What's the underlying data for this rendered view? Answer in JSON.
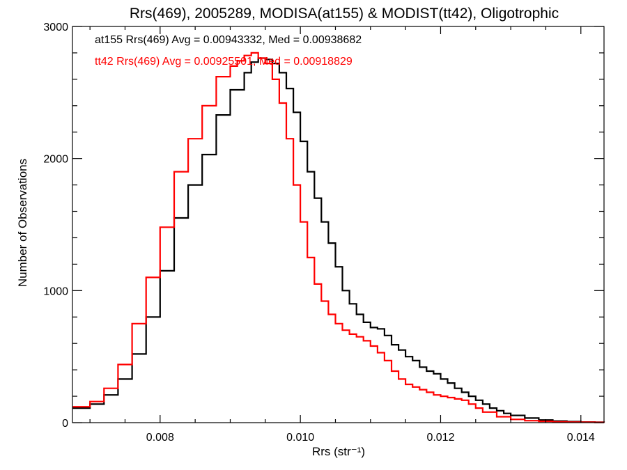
{
  "chart_data": {
    "type": "line",
    "title": "Rrs(469), 2005289, MODISA(at155) & MODIST(tt42), Oligotrophic",
    "xlabel": "Rrs (str⁻¹)",
    "ylabel": "Number of Observations",
    "xlim": [
      0.00675,
      0.01433
    ],
    "ylim": [
      0,
      3000
    ],
    "x_ticks": [
      0.008,
      0.01,
      0.012,
      0.014
    ],
    "x_tick_labels": [
      "0.008",
      "0.010",
      "0.012",
      "0.014"
    ],
    "y_ticks": [
      0,
      1000,
      2000,
      3000
    ],
    "y_tick_labels": [
      "0",
      "1000",
      "2000",
      "3000"
    ],
    "grid": false,
    "annotations": [
      {
        "text": "at155 Rrs(469) Avg = 0.00943332, Med = 0.00938682",
        "color": "#000000"
      },
      {
        "text": "tt42 Rrs(469) Avg = 0.00925501, Med = 0.00918829",
        "color": "#ff0000"
      }
    ],
    "series": [
      {
        "color": "#000000",
        "x": [
          0.00675,
          0.007,
          0.0072,
          0.0074,
          0.0076,
          0.0078,
          0.008,
          0.0082,
          0.0084,
          0.0086,
          0.0088,
          0.009,
          0.0092,
          0.0093,
          0.0094,
          0.0095,
          0.0096,
          0.0097,
          0.0098,
          0.0099,
          0.01,
          0.0101,
          0.0102,
          0.0103,
          0.0104,
          0.0105,
          0.0106,
          0.0107,
          0.0108,
          0.0109,
          0.011,
          0.0111,
          0.0112,
          0.0113,
          0.0114,
          0.0115,
          0.0116,
          0.0117,
          0.0118,
          0.0119,
          0.012,
          0.0121,
          0.0122,
          0.0123,
          0.0124,
          0.0125,
          0.0126,
          0.0127,
          0.0128,
          0.0129,
          0.013,
          0.0132,
          0.0134,
          0.0136,
          0.0138,
          0.014,
          0.0142,
          0.01433
        ],
        "y": [
          110,
          140,
          210,
          330,
          520,
          800,
          1150,
          1550,
          1800,
          2030,
          2330,
          2520,
          2650,
          2730,
          2760,
          2750,
          2720,
          2650,
          2530,
          2350,
          2130,
          1900,
          1700,
          1520,
          1360,
          1180,
          1000,
          900,
          820,
          760,
          720,
          710,
          660,
          590,
          550,
          500,
          470,
          420,
          390,
          370,
          330,
          300,
          260,
          230,
          200,
          170,
          140,
          110,
          90,
          70,
          55,
          35,
          20,
          12,
          8,
          5,
          3,
          2
        ]
      },
      {
        "color": "#ff0000",
        "x": [
          0.00675,
          0.007,
          0.0072,
          0.0074,
          0.0076,
          0.0078,
          0.008,
          0.0082,
          0.0084,
          0.0086,
          0.0088,
          0.009,
          0.0091,
          0.0092,
          0.0093,
          0.0094,
          0.0095,
          0.0096,
          0.0097,
          0.0098,
          0.0099,
          0.01,
          0.0101,
          0.0102,
          0.0103,
          0.0104,
          0.0105,
          0.0106,
          0.0107,
          0.0108,
          0.0109,
          0.011,
          0.0111,
          0.0112,
          0.0113,
          0.0114,
          0.0115,
          0.0116,
          0.0117,
          0.0118,
          0.0119,
          0.012,
          0.0121,
          0.0122,
          0.0123,
          0.0124,
          0.0125,
          0.0126,
          0.0128,
          0.013,
          0.0132,
          0.0134,
          0.0136,
          0.0138,
          0.014,
          0.0142,
          0.01433
        ],
        "y": [
          120,
          160,
          260,
          440,
          750,
          1100,
          1480,
          1900,
          2150,
          2400,
          2620,
          2700,
          2740,
          2780,
          2800,
          2760,
          2720,
          2600,
          2420,
          2150,
          1800,
          1520,
          1250,
          1050,
          920,
          820,
          750,
          700,
          670,
          650,
          620,
          580,
          530,
          470,
          390,
          330,
          290,
          270,
          250,
          230,
          210,
          200,
          190,
          180,
          170,
          140,
          110,
          80,
          45,
          25,
          15,
          10,
          6,
          4,
          3,
          2,
          1
        ]
      }
    ]
  }
}
